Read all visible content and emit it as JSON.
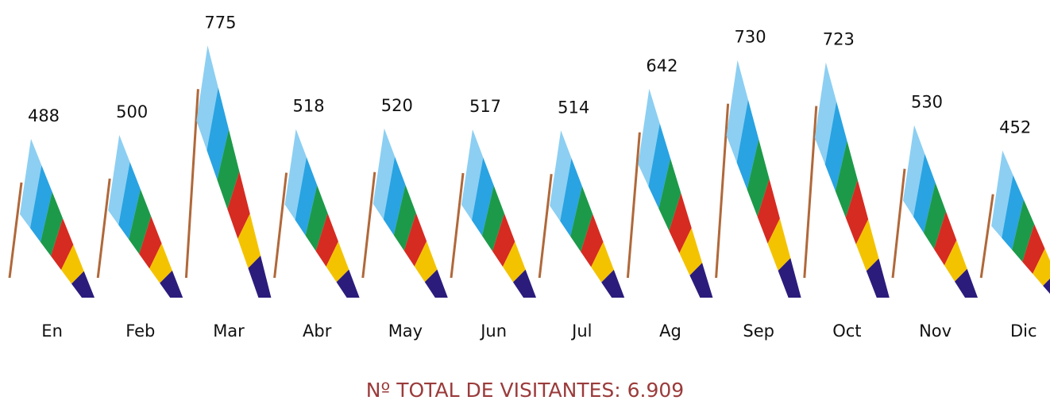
{
  "chart_data": {
    "type": "flag",
    "categories": [
      "En",
      "Feb",
      "Mar",
      "Abr",
      "May",
      "Jun",
      "Jul",
      "Ag",
      "Sep",
      "Oct",
      "Nov",
      "Dic"
    ],
    "values": [
      488,
      500,
      775,
      518,
      520,
      517,
      514,
      642,
      730,
      723,
      530,
      452
    ],
    "colors": [
      "#8ccff2",
      "#29a3e2",
      "#1c9a4a",
      "#d62b21",
      "#f4c300",
      "#2b1c7c"
    ],
    "annotation": "Nº TOTAL DE VISITANTES: 6.909"
  }
}
